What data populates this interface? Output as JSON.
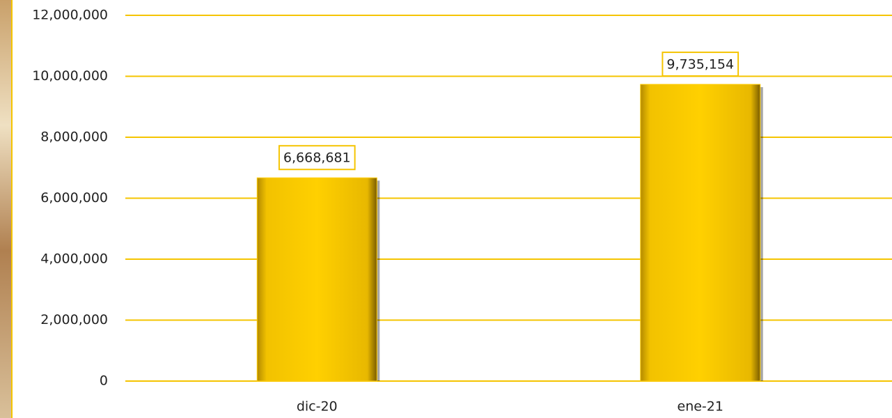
{
  "chart_data": {
    "type": "bar",
    "categories": [
      "dic-20",
      "ene-21"
    ],
    "values": [
      6668681,
      9735154
    ],
    "value_labels": [
      "6,668,681",
      "9,735,154"
    ],
    "color": "#ffcc00",
    "ylim": [
      0,
      12000000
    ],
    "yticks": [
      0,
      {
        "value": 2000000,
        "label": "2,000,000"
      },
      {
        "value": 4000000,
        "label": "4,000,000"
      },
      {
        "value": 6000000,
        "label": "6,000,000"
      },
      {
        "value": 8000000,
        "label": "8,000,000"
      },
      {
        "value": 10000000,
        "label": "10,000,000"
      },
      {
        "value": 12000000,
        "label": "12,000,000"
      }
    ],
    "grid": true
  }
}
